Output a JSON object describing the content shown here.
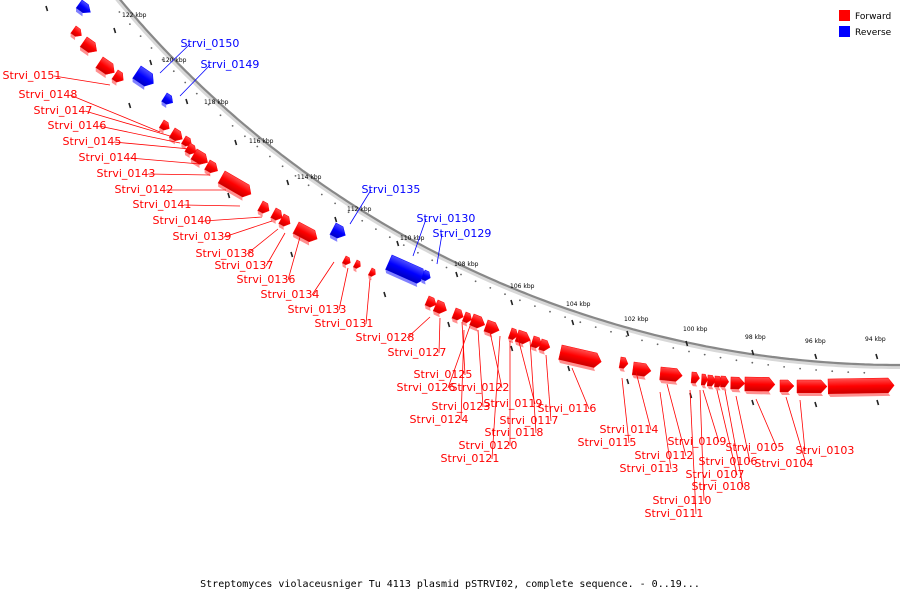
{
  "caption": "Streptomyces violaceusniger Tu 4113 plasmid pSTRVI02, complete sequence. - 0..19...",
  "legend": [
    {
      "label": "Forward",
      "color": "#ff0000"
    },
    {
      "label": "Reverse",
      "color": "#0000ff"
    }
  ],
  "ticks": [
    "122 kbp",
    "120 kbp",
    "118 kbp",
    "116 kbp",
    "114 kbp",
    "112 kbp",
    "110 kbp",
    "108 kbp",
    "106 kbp",
    "104 kbp",
    "102 kbp",
    "100 kbp",
    "98 kbp",
    "96 kbp",
    "94 kbp"
  ],
  "genes": [
    {
      "name": "Strvi_0150",
      "strand": "reverse"
    },
    {
      "name": "Strvi_0149",
      "strand": "reverse"
    },
    {
      "name": "Strvi_0151",
      "strand": "forward"
    },
    {
      "name": "Strvi_0148",
      "strand": "forward"
    },
    {
      "name": "Strvi_0147",
      "strand": "forward"
    },
    {
      "name": "Strvi_0146",
      "strand": "forward"
    },
    {
      "name": "Strvi_0145",
      "strand": "forward"
    },
    {
      "name": "Strvi_0144",
      "strand": "forward"
    },
    {
      "name": "Strvi_0143",
      "strand": "forward"
    },
    {
      "name": "Strvi_0142",
      "strand": "forward"
    },
    {
      "name": "Strvi_0141",
      "strand": "forward"
    },
    {
      "name": "Strvi_0140",
      "strand": "forward"
    },
    {
      "name": "Strvi_0139",
      "strand": "forward"
    },
    {
      "name": "Strvi_0138",
      "strand": "forward"
    },
    {
      "name": "Strvi_0137",
      "strand": "forward"
    },
    {
      "name": "Strvi_0136",
      "strand": "forward"
    },
    {
      "name": "Strvi_0135",
      "strand": "reverse"
    },
    {
      "name": "Strvi_0134",
      "strand": "forward"
    },
    {
      "name": "Strvi_0133",
      "strand": "forward"
    },
    {
      "name": "Strvi_0131",
      "strand": "forward"
    },
    {
      "name": "Strvi_0130",
      "strand": "reverse"
    },
    {
      "name": "Strvi_0129",
      "strand": "reverse"
    },
    {
      "name": "Strvi_0128",
      "strand": "forward"
    },
    {
      "name": "Strvi_0127",
      "strand": "forward"
    },
    {
      "name": "Strvi_0125",
      "strand": "forward"
    },
    {
      "name": "Strvi_0126",
      "strand": "forward"
    },
    {
      "name": "Strvi_0122",
      "strand": "forward"
    },
    {
      "name": "Strvi_0123",
      "strand": "forward"
    },
    {
      "name": "Strvi_0124",
      "strand": "forward"
    },
    {
      "name": "Strvi_0119",
      "strand": "forward"
    },
    {
      "name": "Strvi_0117",
      "strand": "forward"
    },
    {
      "name": "Strvi_0118",
      "strand": "forward"
    },
    {
      "name": "Strvi_0120",
      "strand": "forward"
    },
    {
      "name": "Strvi_0121",
      "strand": "forward"
    },
    {
      "name": "Strvi_0116",
      "strand": "forward"
    },
    {
      "name": "Strvi_0114",
      "strand": "forward"
    },
    {
      "name": "Strvi_0115",
      "strand": "forward"
    },
    {
      "name": "Strvi_0112",
      "strand": "forward"
    },
    {
      "name": "Strvi_0113",
      "strand": "forward"
    },
    {
      "name": "Strvi_0109",
      "strand": "forward"
    },
    {
      "name": "Strvi_0107",
      "strand": "forward"
    },
    {
      "name": "Strvi_0108",
      "strand": "forward"
    },
    {
      "name": "Strvi_0110",
      "strand": "forward"
    },
    {
      "name": "Strvi_0111",
      "strand": "forward"
    },
    {
      "name": "Strvi_0106",
      "strand": "forward"
    },
    {
      "name": "Strvi_0105",
      "strand": "forward"
    },
    {
      "name": "Strvi_0104",
      "strand": "forward"
    },
    {
      "name": "Strvi_0103",
      "strand": "forward"
    }
  ]
}
